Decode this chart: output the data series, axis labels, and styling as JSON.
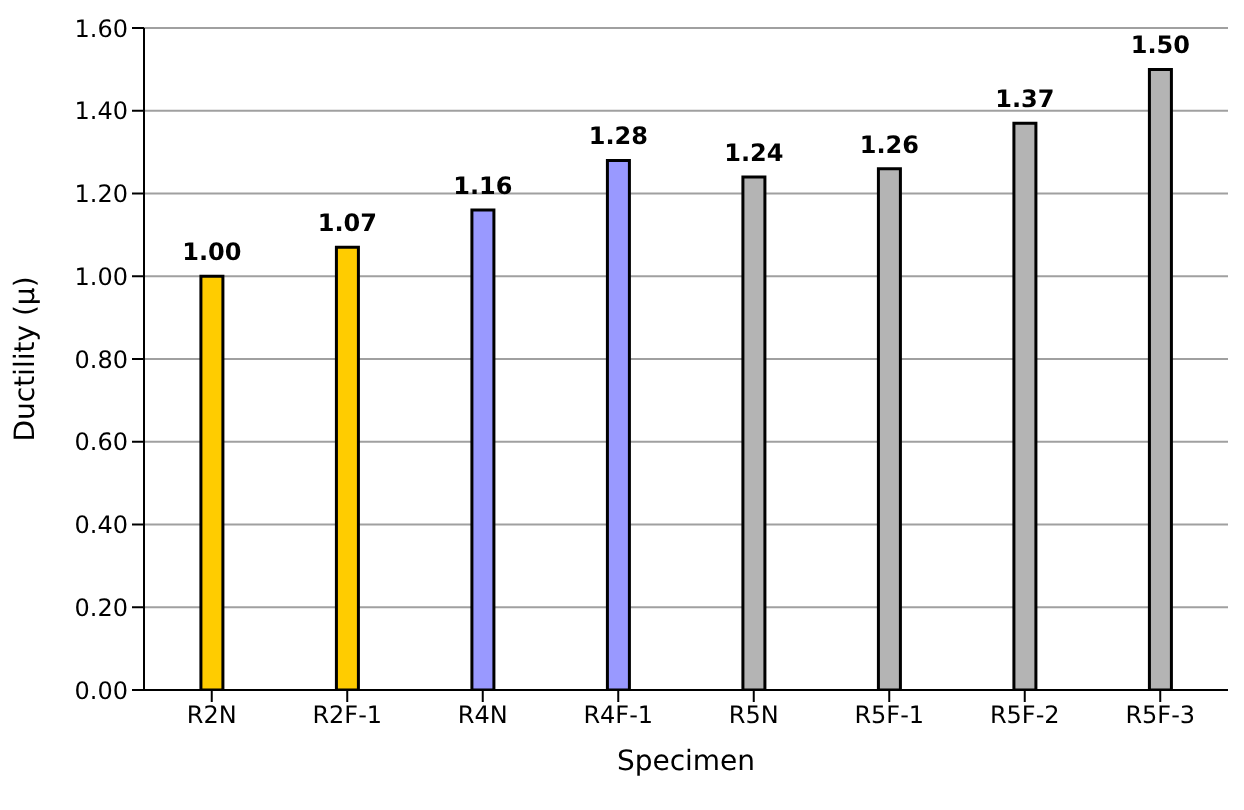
{
  "chart_data": {
    "type": "bar",
    "xlabel": "Specimen",
    "ylabel": "Ductility (μ)",
    "categories": [
      "R2N",
      "R2F-1",
      "R4N",
      "R4F-1",
      "R5N",
      "R5F-1",
      "R5F-2",
      "R5F-3"
    ],
    "values": [
      1.0,
      1.07,
      1.16,
      1.28,
      1.24,
      1.26,
      1.37,
      1.5
    ],
    "colors": [
      "#ffcc00",
      "#ffcc00",
      "#9999ff",
      "#9999ff",
      "#b4b4b4",
      "#b4b4b4",
      "#b4b4b4",
      "#b4b4b4"
    ],
    "value_labels": [
      "1.00",
      "1.07",
      "1.16",
      "1.28",
      "1.24",
      "1.26",
      "1.37",
      "1.50"
    ],
    "ylim": [
      0,
      1.6
    ],
    "yticks": [
      {
        "value": 0,
        "label": "0.00"
      },
      {
        "value": 0.2,
        "label": "0.20"
      },
      {
        "value": 0.4,
        "label": "0.40"
      },
      {
        "value": 0.6,
        "label": "0.60"
      },
      {
        "value": 0.8,
        "label": "0.80"
      },
      {
        "value": 1.0,
        "label": "1.00"
      },
      {
        "value": 1.2,
        "label": "1.20"
      },
      {
        "value": 1.4,
        "label": "1.40"
      },
      {
        "value": 1.6,
        "label": "1.60"
      }
    ],
    "grid": "y"
  }
}
